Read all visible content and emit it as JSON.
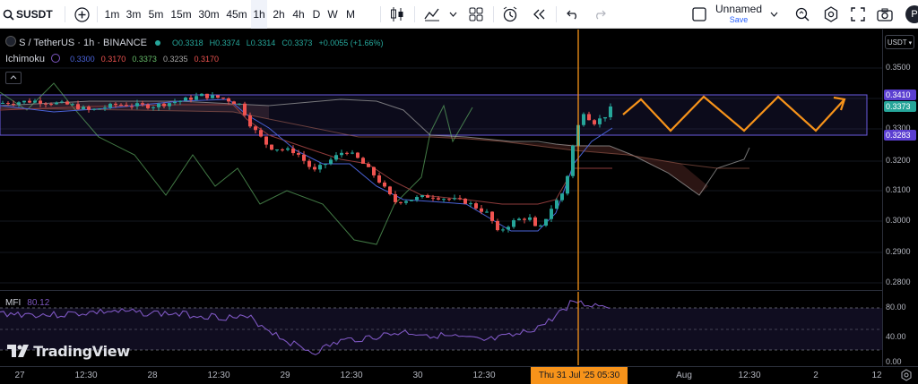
{
  "toolbar": {
    "symbol": "SUSDT",
    "timeframes": [
      "1m",
      "3m",
      "5m",
      "15m",
      "30m",
      "45m",
      "1h",
      "2h",
      "4h",
      "D",
      "W",
      "M"
    ],
    "active_timeframe": "1h",
    "layout_name": "Unnamed",
    "save_label": "Save",
    "avatar_letter": "P"
  },
  "legend": {
    "title": "S / TetherUS · 1h · BINANCE",
    "o": "O0.3318",
    "h": "H0.3374",
    "l": "L0.3314",
    "c": "C0.3373",
    "change": "+0.0055 (+1.66%)",
    "ichimoku_label": "Ichimoku",
    "ichimoku_values": [
      "0.3300",
      "0.3170",
      "0.3373",
      "0.3235",
      "0.3170"
    ],
    "mfi_label": "MFI",
    "mfi_value": "80.12"
  },
  "price_axis": {
    "currency": "USDT",
    "ticks": [
      "0.3500",
      "0.3400",
      "0.3300",
      "0.3200",
      "0.3100",
      "0.3000",
      "0.2900",
      "0.2800"
    ],
    "tags": [
      {
        "label": "0.3410",
        "color": "#5b3fd1"
      },
      {
        "label": "0.3373",
        "color": "#26a69a"
      },
      {
        "label": "0.3283",
        "color": "#5b3fd1"
      }
    ]
  },
  "mfi_axis": {
    "ticks": [
      "80.00",
      "40.00",
      "0.00"
    ]
  },
  "time_axis": {
    "labels": [
      "27",
      "12:30",
      "28",
      "12:30",
      "29",
      "12:30",
      "30",
      "12:30",
      "Aug",
      "12:30",
      "2",
      "12"
    ],
    "crosshair_label": "Thu 31 Jul '25    05:30"
  },
  "brand": "TradingView",
  "colors": {
    "up": "#26a69a",
    "down": "#ef5350",
    "range": "#5b3fd1",
    "pattern": "#f7931a",
    "crosshair": "#f7931a",
    "mfi_line": "#7e57c2"
  }
}
